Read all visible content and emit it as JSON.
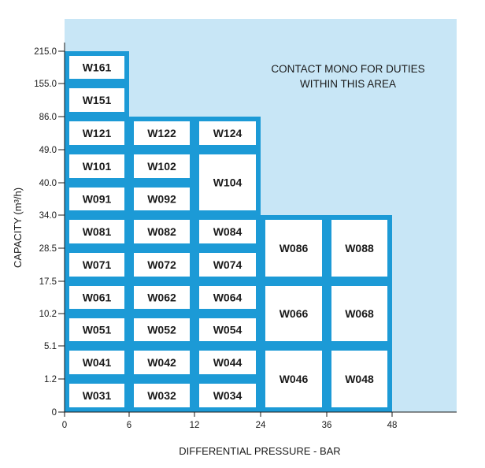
{
  "chart_data": {
    "type": "heatmap",
    "title": "",
    "xlabel": "DIFFERENTIAL PRESSURE - BAR",
    "ylabel": "CAPACITY (m³/h)",
    "x_ticks": [
      "0",
      "6",
      "12",
      "24",
      "36",
      "48"
    ],
    "y_ticks": [
      "0",
      "1.2",
      "5.1",
      "10.2",
      "17.5",
      "28.5",
      "34.0",
      "40.0",
      "49.0",
      "86.0",
      "155.0",
      "215.0"
    ],
    "annotation": [
      "CONTACT MONO FOR DUTIES",
      "WITHIN THIS AREA"
    ],
    "colors": {
      "area": "#c8e6f6",
      "border": "#1c9ad6",
      "cell": "#ffffff",
      "text": "#1a1a1a",
      "axis": "#1a1a1a"
    },
    "cells": [
      {
        "label": "W161",
        "x_range": [
          "0",
          "6"
        ],
        "y_range": [
          "155.0",
          "215.0"
        ]
      },
      {
        "label": "W151",
        "x_range": [
          "0",
          "6"
        ],
        "y_range": [
          "86.0",
          "155.0"
        ]
      },
      {
        "label": "W121",
        "x_range": [
          "0",
          "6"
        ],
        "y_range": [
          "49.0",
          "86.0"
        ]
      },
      {
        "label": "W122",
        "x_range": [
          "6",
          "12"
        ],
        "y_range": [
          "49.0",
          "86.0"
        ]
      },
      {
        "label": "W124",
        "x_range": [
          "12",
          "24"
        ],
        "y_range": [
          "49.0",
          "86.0"
        ]
      },
      {
        "label": "W101",
        "x_range": [
          "0",
          "6"
        ],
        "y_range": [
          "40.0",
          "49.0"
        ]
      },
      {
        "label": "W102",
        "x_range": [
          "6",
          "12"
        ],
        "y_range": [
          "40.0",
          "49.0"
        ]
      },
      {
        "label": "W104",
        "x_range": [
          "12",
          "24"
        ],
        "y_range": [
          "34.0",
          "49.0"
        ]
      },
      {
        "label": "W091",
        "x_range": [
          "0",
          "6"
        ],
        "y_range": [
          "34.0",
          "40.0"
        ]
      },
      {
        "label": "W092",
        "x_range": [
          "6",
          "12"
        ],
        "y_range": [
          "34.0",
          "40.0"
        ]
      },
      {
        "label": "W081",
        "x_range": [
          "0",
          "6"
        ],
        "y_range": [
          "28.5",
          "34.0"
        ]
      },
      {
        "label": "W082",
        "x_range": [
          "6",
          "12"
        ],
        "y_range": [
          "28.5",
          "34.0"
        ]
      },
      {
        "label": "W084",
        "x_range": [
          "12",
          "24"
        ],
        "y_range": [
          "28.5",
          "34.0"
        ]
      },
      {
        "label": "W086",
        "x_range": [
          "24",
          "36"
        ],
        "y_range": [
          "17.5",
          "34.0"
        ]
      },
      {
        "label": "W088",
        "x_range": [
          "36",
          "48"
        ],
        "y_range": [
          "17.5",
          "34.0"
        ]
      },
      {
        "label": "W071",
        "x_range": [
          "0",
          "6"
        ],
        "y_range": [
          "17.5",
          "28.5"
        ]
      },
      {
        "label": "W072",
        "x_range": [
          "6",
          "12"
        ],
        "y_range": [
          "17.5",
          "28.5"
        ]
      },
      {
        "label": "W074",
        "x_range": [
          "12",
          "24"
        ],
        "y_range": [
          "17.5",
          "28.5"
        ]
      },
      {
        "label": "W061",
        "x_range": [
          "0",
          "6"
        ],
        "y_range": [
          "10.2",
          "17.5"
        ]
      },
      {
        "label": "W062",
        "x_range": [
          "6",
          "12"
        ],
        "y_range": [
          "10.2",
          "17.5"
        ]
      },
      {
        "label": "W064",
        "x_range": [
          "12",
          "24"
        ],
        "y_range": [
          "10.2",
          "17.5"
        ]
      },
      {
        "label": "W066",
        "x_range": [
          "24",
          "36"
        ],
        "y_range": [
          "5.1",
          "17.5"
        ]
      },
      {
        "label": "W068",
        "x_range": [
          "36",
          "48"
        ],
        "y_range": [
          "5.1",
          "17.5"
        ]
      },
      {
        "label": "W051",
        "x_range": [
          "0",
          "6"
        ],
        "y_range": [
          "5.1",
          "10.2"
        ]
      },
      {
        "label": "W052",
        "x_range": [
          "6",
          "12"
        ],
        "y_range": [
          "5.1",
          "10.2"
        ]
      },
      {
        "label": "W054",
        "x_range": [
          "12",
          "24"
        ],
        "y_range": [
          "5.1",
          "10.2"
        ]
      },
      {
        "label": "W041",
        "x_range": [
          "0",
          "6"
        ],
        "y_range": [
          "1.2",
          "5.1"
        ]
      },
      {
        "label": "W042",
        "x_range": [
          "6",
          "12"
        ],
        "y_range": [
          "1.2",
          "5.1"
        ]
      },
      {
        "label": "W044",
        "x_range": [
          "12",
          "24"
        ],
        "y_range": [
          "1.2",
          "5.1"
        ]
      },
      {
        "label": "W046",
        "x_range": [
          "24",
          "36"
        ],
        "y_range": [
          "0",
          "5.1"
        ]
      },
      {
        "label": "W048",
        "x_range": [
          "36",
          "48"
        ],
        "y_range": [
          "0",
          "5.1"
        ]
      },
      {
        "label": "W031",
        "x_range": [
          "0",
          "6"
        ],
        "y_range": [
          "0",
          "1.2"
        ]
      },
      {
        "label": "W032",
        "x_range": [
          "6",
          "12"
        ],
        "y_range": [
          "0",
          "1.2"
        ]
      },
      {
        "label": "W034",
        "x_range": [
          "12",
          "24"
        ],
        "y_range": [
          "0",
          "1.2"
        ]
      }
    ]
  }
}
